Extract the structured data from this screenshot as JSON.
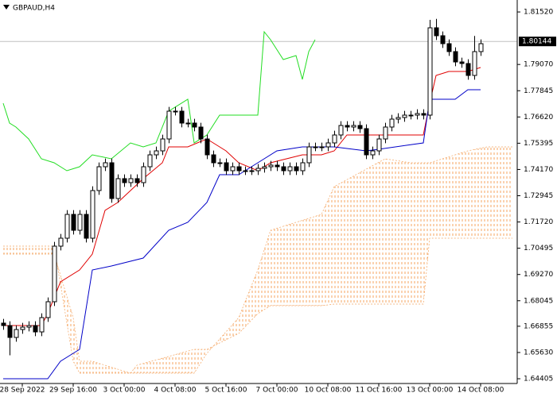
{
  "chart_data": {
    "type": "candlestick",
    "title": "GBPAUD,H4",
    "xlim": [
      -0.5,
      80.75
    ],
    "ylim": [
      1.64183,
      1.82078
    ],
    "grid": false,
    "xticks": [
      {
        "value": 3,
        "label": "28 Sep 2022"
      },
      {
        "value": 11,
        "label": "29 Sep 16:00"
      },
      {
        "value": 19,
        "label": "3 Oct 00:00"
      },
      {
        "value": 27,
        "label": "4 Oct 08:00"
      },
      {
        "value": 35,
        "label": "5 Oct 16:00"
      },
      {
        "value": 43,
        "label": "7 Oct 00:00"
      },
      {
        "value": 51,
        "label": "10 Oct 08:00"
      },
      {
        "value": 59,
        "label": "11 Oct 16:00"
      },
      {
        "value": 67,
        "label": "13 Oct 00:00"
      },
      {
        "value": 75,
        "label": "14 Oct 08:00"
      }
    ],
    "yticks": [
      {
        "value": 1.8152,
        "label": "1.81520"
      },
      {
        "value": 1.7907,
        "label": "1.79070"
      },
      {
        "value": 1.77845,
        "label": "1.77845"
      },
      {
        "value": 1.7662,
        "label": "1.76620"
      },
      {
        "value": 1.75395,
        "label": "1.75395"
      },
      {
        "value": 1.7417,
        "label": "1.74170"
      },
      {
        "value": 1.72945,
        "label": "1.72945"
      },
      {
        "value": 1.7172,
        "label": "1.71720"
      },
      {
        "value": 1.70495,
        "label": "1.70495"
      },
      {
        "value": 1.6927,
        "label": "1.69270"
      },
      {
        "value": 1.68045,
        "label": "1.68045"
      },
      {
        "value": 1.66855,
        "label": "1.66855"
      },
      {
        "value": 1.6563,
        "label": "1.65630"
      },
      {
        "value": 1.64405,
        "label": "1.64405"
      }
    ],
    "last_price": {
      "value": 1.80144,
      "label": "1.80144",
      "color": "#c0c0c0"
    },
    "candles": {
      "up_color": "#ffffff",
      "down_color": "#000000",
      "x": [
        0,
        1,
        2,
        3,
        4,
        5,
        6,
        7,
        8,
        9,
        10,
        11,
        12,
        13,
        14,
        15,
        16,
        17,
        18,
        19,
        20,
        21,
        22,
        23,
        24,
        25,
        26,
        27,
        28,
        29,
        30,
        31,
        32,
        33,
        34,
        35,
        36,
        37,
        38,
        39,
        40,
        41,
        42,
        43,
        44,
        45,
        46,
        47,
        48,
        49,
        50,
        51,
        52,
        53,
        54,
        55,
        56,
        57,
        58,
        59,
        60,
        61,
        62,
        63,
        64,
        65,
        66,
        67,
        68,
        69,
        70,
        71,
        72,
        73,
        74,
        75
      ],
      "open": [
        1.67,
        1.66887,
        1.66332,
        1.66702,
        1.66813,
        1.66887,
        1.66591,
        1.67258,
        1.67999,
        1.70592,
        1.70963,
        1.72074,
        1.71333,
        1.72074,
        1.70963,
        1.73186,
        1.74297,
        1.74483,
        1.72815,
        1.73742,
        1.73556,
        1.73742,
        1.73556,
        1.74297,
        1.74853,
        1.75038,
        1.75594,
        1.76891,
        1.76891,
        1.76335,
        1.76335,
        1.7615,
        1.75594,
        1.74853,
        1.74483,
        1.74483,
        1.74112,
        1.74297,
        1.74112,
        1.74112,
        1.74112,
        1.74223,
        1.74297,
        1.74372,
        1.74297,
        1.74112,
        1.74297,
        1.74112,
        1.74483,
        1.75224,
        1.75224,
        1.75224,
        1.75409,
        1.75779,
        1.76224,
        1.7615,
        1.76224,
        1.76076,
        1.74853,
        1.75038,
        1.75594,
        1.7615,
        1.7652,
        1.76595,
        1.76706,
        1.76706,
        1.7678,
        1.76706,
        1.80781,
        1.80411,
        1.8004,
        1.7967,
        1.79188,
        1.79114,
        1.78558,
        1.7967
      ],
      "high": [
        1.672,
        1.67087,
        1.66902,
        1.67013,
        1.67087,
        1.67087,
        1.67458,
        1.68199,
        1.70792,
        1.71163,
        1.72274,
        1.72274,
        1.72274,
        1.72274,
        1.73386,
        1.74497,
        1.74683,
        1.74683,
        1.73942,
        1.73942,
        1.73942,
        1.73942,
        1.74497,
        1.75053,
        1.75238,
        1.75794,
        1.77091,
        1.77091,
        1.77091,
        1.76535,
        1.76535,
        1.7635,
        1.75794,
        1.75053,
        1.74683,
        1.74683,
        1.74497,
        1.74497,
        1.74312,
        1.74312,
        1.74423,
        1.74497,
        1.74572,
        1.74572,
        1.74497,
        1.74497,
        1.74497,
        1.74683,
        1.75424,
        1.75424,
        1.75424,
        1.75609,
        1.75979,
        1.76424,
        1.76424,
        1.76424,
        1.76424,
        1.76276,
        1.75238,
        1.75794,
        1.7635,
        1.7672,
        1.76795,
        1.76906,
        1.76906,
        1.7698,
        1.7698,
        1.8115,
        1.812,
        1.80611,
        1.8024,
        1.7987,
        1.79388,
        1.79314,
        1.804,
        1.8024
      ],
      "low": [
        1.66687,
        1.655,
        1.66132,
        1.66502,
        1.66613,
        1.66391,
        1.66391,
        1.67058,
        1.67799,
        1.70392,
        1.70763,
        1.71133,
        1.71133,
        1.70763,
        1.70763,
        1.72986,
        1.74097,
        1.72615,
        1.72615,
        1.73356,
        1.73356,
        1.73356,
        1.73356,
        1.74097,
        1.74653,
        1.74838,
        1.75394,
        1.76691,
        1.76135,
        1.76135,
        1.7595,
        1.75394,
        1.74653,
        1.74283,
        1.74283,
        1.73912,
        1.73912,
        1.73912,
        1.73912,
        1.73912,
        1.73912,
        1.74023,
        1.74097,
        1.74097,
        1.73912,
        1.73912,
        1.73912,
        1.73912,
        1.74283,
        1.75024,
        1.75024,
        1.75024,
        1.75209,
        1.75579,
        1.7595,
        1.7595,
        1.75876,
        1.74653,
        1.74653,
        1.74838,
        1.75394,
        1.7595,
        1.7632,
        1.76395,
        1.76506,
        1.76506,
        1.76506,
        1.76506,
        1.80211,
        1.7984,
        1.7947,
        1.78988,
        1.78914,
        1.78358,
        1.78358,
        1.7947
      ],
      "close": [
        1.66887,
        1.66332,
        1.66702,
        1.66813,
        1.66887,
        1.66591,
        1.67258,
        1.67999,
        1.70592,
        1.70963,
        1.72074,
        1.71333,
        1.72074,
        1.70963,
        1.73186,
        1.74297,
        1.74483,
        1.72815,
        1.73742,
        1.73556,
        1.73742,
        1.73556,
        1.74297,
        1.74853,
        1.75038,
        1.75594,
        1.76891,
        1.76891,
        1.76335,
        1.76335,
        1.7615,
        1.75594,
        1.74853,
        1.74483,
        1.74483,
        1.74112,
        1.74297,
        1.74112,
        1.74112,
        1.74112,
        1.74223,
        1.74297,
        1.74372,
        1.74297,
        1.74112,
        1.74297,
        1.74112,
        1.74483,
        1.75224,
        1.75224,
        1.75224,
        1.75409,
        1.75779,
        1.76224,
        1.7615,
        1.76224,
        1.76076,
        1.74853,
        1.75038,
        1.75594,
        1.7615,
        1.7652,
        1.76595,
        1.76706,
        1.76706,
        1.7678,
        1.76706,
        1.80781,
        1.80411,
        1.8004,
        1.7967,
        1.79188,
        1.79114,
        1.78558,
        1.7967,
        1.8004
      ]
    },
    "cloud": {
      "color": "#f4a460",
      "x": [
        0,
        8,
        11,
        12,
        14,
        20,
        21,
        30,
        32,
        37,
        40,
        42,
        50,
        52,
        60,
        64,
        66,
        67,
        73,
        76,
        80
      ],
      "senkou_a": [
        1.70222,
        1.70222,
        1.67258,
        1.6522,
        1.6522,
        1.64664,
        1.64664,
        1.64664,
        1.65591,
        1.67258,
        1.69481,
        1.71333,
        1.72074,
        1.73371,
        1.74668,
        1.74483,
        1.74483,
        1.74483,
        1.75038,
        1.75224,
        1.75224
      ],
      "senkou_b": [
        1.70592,
        1.70592,
        1.6522,
        1.64664,
        1.64664,
        1.64664,
        1.65035,
        1.65776,
        1.65776,
        1.66517,
        1.67443,
        1.67814,
        1.67814,
        1.67888,
        1.67888,
        1.67888,
        1.67888,
        1.70963,
        1.70963,
        1.70963,
        1.70963
      ]
    },
    "series": [
      {
        "color": "#e00000",
        "x": [
          0,
          6,
          7,
          9,
          12,
          14,
          16,
          18,
          22,
          25,
          26,
          29,
          32,
          35,
          37,
          40,
          42,
          47,
          50,
          52,
          54,
          57,
          62,
          66,
          67,
          68,
          70,
          73,
          75
        ],
        "values": [
          1.66887,
          1.66887,
          1.67443,
          1.68925,
          1.69481,
          1.70222,
          1.7226,
          1.7263,
          1.73742,
          1.74483,
          1.75224,
          1.75224,
          1.75594,
          1.75038,
          1.74483,
          1.74112,
          1.74483,
          1.74853,
          1.74853,
          1.75038,
          1.75779,
          1.75779,
          1.75779,
          1.75779,
          1.77261,
          1.78558,
          1.78743,
          1.78743,
          1.78929
        ]
      },
      {
        "color": "#0000c8",
        "x": [
          0,
          7,
          9,
          12,
          14,
          17,
          22,
          26,
          29,
          32,
          34,
          37,
          40,
          43,
          47,
          52,
          57,
          59,
          66,
          67,
          71,
          73,
          75
        ],
        "values": [
          1.64405,
          1.64405,
          1.6522,
          1.65776,
          1.69481,
          1.69666,
          1.70037,
          1.71333,
          1.71704,
          1.7263,
          1.73927,
          1.73927,
          1.74483,
          1.75038,
          1.75224,
          1.75224,
          1.75038,
          1.75113,
          1.75409,
          1.77447,
          1.77447,
          1.77891,
          1.77891
        ]
      },
      {
        "color": "#22dd22",
        "x": [
          0,
          1,
          2,
          4,
          6,
          8,
          10,
          12,
          14,
          17,
          20,
          22,
          24,
          26,
          29,
          30,
          32,
          34,
          37,
          40,
          41,
          42,
          44,
          46,
          47,
          48,
          49
        ],
        "values": [
          1.77261,
          1.76335,
          1.7615,
          1.75594,
          1.74668,
          1.74483,
          1.74112,
          1.74297,
          1.74853,
          1.74668,
          1.75409,
          1.75224,
          1.75409,
          1.76891,
          1.77447,
          1.75409,
          1.75779,
          1.76706,
          1.76706,
          1.76706,
          1.80596,
          1.80225,
          1.79299,
          1.79484,
          1.78373,
          1.7967,
          1.80225
        ]
      }
    ]
  }
}
